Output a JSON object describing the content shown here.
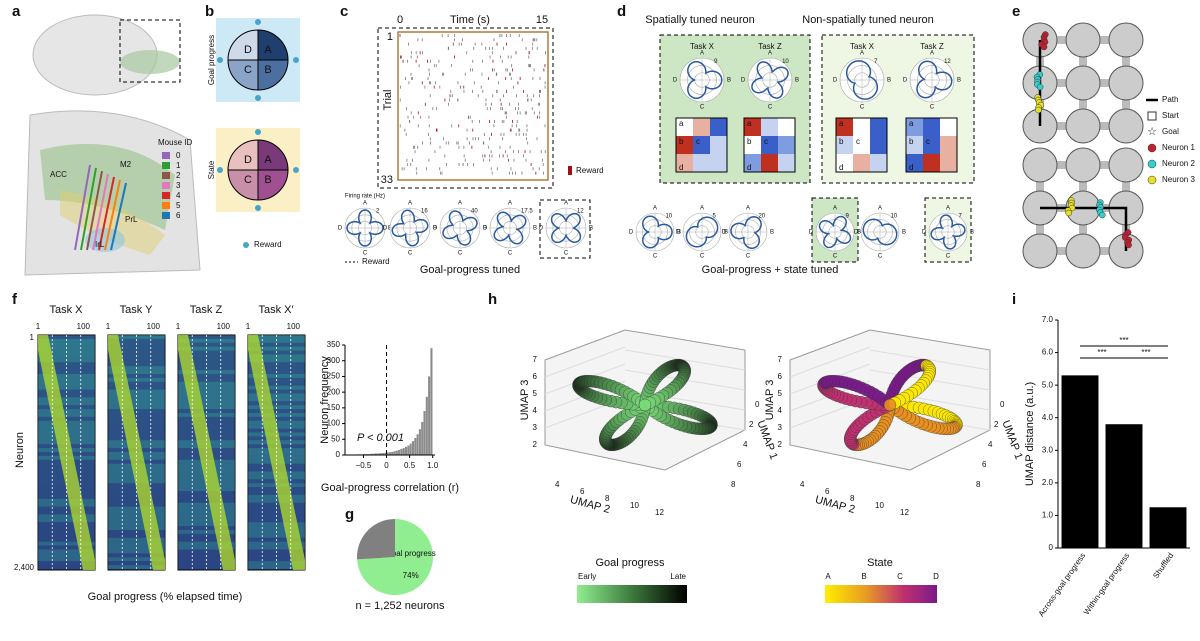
{
  "panels": {
    "a": {
      "label": "a",
      "legend_title": "Mouse ID",
      "mouse_ids": [
        "0",
        "1",
        "2",
        "3",
        "4",
        "5",
        "6"
      ],
      "mouse_colors": [
        "#9467bd",
        "#2ca02c",
        "#8c564b",
        "#e377c2",
        "#d62728",
        "#ff7f0e",
        "#1f77b4"
      ],
      "regions": [
        "ACC",
        "M2",
        "PrL",
        "IrL"
      ]
    },
    "b": {
      "label": "b",
      "axis_labels": [
        "Goal progress",
        "State"
      ],
      "letters": [
        "A",
        "B",
        "C",
        "D"
      ],
      "legend": "Reward"
    },
    "c": {
      "label": "c",
      "x_label": "Time (s)",
      "xticks": [
        "0",
        "15"
      ],
      "y_label": "Trial",
      "yticks": [
        "1",
        "33"
      ],
      "legend": "Reward",
      "rate_label": "Firing rate (Hz)",
      "polar_scales": [
        "2",
        "16",
        "40",
        "17.5",
        "12"
      ],
      "reward_legend": "Reward",
      "caption": "Goal-progress tuned"
    },
    "d": {
      "label": "d",
      "titles": [
        "Spatially tuned neuron",
        "Non-spatially tuned neuron"
      ],
      "tasks": [
        "Task X",
        "Task Z",
        "Task X",
        "Task Z"
      ],
      "scales": [
        "9",
        "10",
        "7",
        "12"
      ],
      "cell_letters": [
        "a",
        "b",
        "c",
        "d"
      ],
      "bottom_scales": [
        "10",
        "5",
        "20",
        "9",
        "10",
        "7"
      ],
      "caption": "Goal-progress + state tuned"
    },
    "e": {
      "label": "e",
      "legend": [
        "Path",
        "Start",
        "Goal",
        "Neuron 1",
        "Neuron 2",
        "Neuron 3"
      ]
    },
    "f": {
      "label": "f",
      "tasks": [
        "Task X",
        "Task Y",
        "Task Z",
        "Task X′"
      ],
      "xticks": [
        "1",
        "100"
      ],
      "y_label": "Neuron",
      "yticks": [
        "1",
        "2,400"
      ],
      "x_label": "Goal progress (% elapsed time)"
    },
    "g": {
      "label": "g"
    },
    "h": {
      "label": "h",
      "axis_labels": [
        "UMAP 1",
        "UMAP 2",
        "UMAP 3"
      ],
      "umap1_ticks": [
        "0",
        "2",
        "4",
        "6",
        "8"
      ],
      "umap2_ticks": [
        "4",
        "6",
        "8",
        "10",
        "12"
      ],
      "umap3_ticks": [
        "2",
        "3",
        "4",
        "5",
        "6",
        "7"
      ],
      "colorbar_titles": [
        "Goal progress",
        "State"
      ],
      "progress_ends": [
        "Early",
        "Late"
      ],
      "state_ticks": [
        "A",
        "B",
        "C",
        "D"
      ]
    },
    "i": {
      "label": "i",
      "significance": [
        "***",
        "***",
        "***"
      ]
    }
  },
  "chart_data": [
    {
      "type": "histogram",
      "y_label": "Neuron frequency",
      "x_label": "Goal-progress correlation (r)",
      "annotation": "P < 0.001",
      "bins": [
        -0.8,
        -0.75,
        -0.7,
        -0.65,
        -0.6,
        -0.55,
        -0.5,
        -0.45,
        -0.4,
        -0.35,
        -0.3,
        -0.25,
        -0.2,
        -0.15,
        -0.1,
        -0.05,
        0,
        0.05,
        0.1,
        0.15,
        0.2,
        0.25,
        0.3,
        0.35,
        0.4,
        0.45,
        0.5,
        0.55,
        0.6,
        0.65,
        0.7,
        0.75,
        0.8,
        0.85,
        0.9,
        0.95,
        1.0
      ],
      "counts": [
        1,
        1,
        1,
        2,
        2,
        2,
        3,
        3,
        3,
        4,
        4,
        5,
        5,
        6,
        6,
        7,
        8,
        9,
        10,
        12,
        14,
        16,
        19,
        22,
        26,
        30,
        36,
        44,
        54,
        66,
        82,
        105,
        140,
        185,
        250,
        340
      ],
      "color": "#8c8c8c",
      "xlim": [
        -0.9,
        1.05
      ],
      "xticks": [
        {
          "value": -0.5,
          "label": "−0.5"
        },
        0,
        0.5,
        {
          "value": 1,
          "label": "1.0"
        }
      ],
      "ylim": [
        0,
        350
      ],
      "yticks": [
        0,
        50,
        100,
        150,
        200,
        250,
        300,
        350
      ]
    },
    {
      "type": "pie",
      "categories": [
        "Goal progress",
        null
      ],
      "values": [
        74,
        26
      ],
      "value_labels": [
        "74%",
        null
      ],
      "colors": [
        "#90ee90",
        "#808080"
      ],
      "caption": "n = 1,252 neurons"
    },
    {
      "type": "bar",
      "y_label": "UMAP distance (a.u.)",
      "categories": [
        "Across-goal progress",
        "Within-goal progress",
        "Shuffled"
      ],
      "values": [
        5.3,
        3.8,
        1.25
      ],
      "color": "#000000",
      "ylim": [
        0,
        7
      ],
      "yticks": [
        0,
        {
          "value": 1,
          "label": "1.0"
        },
        {
          "value": 2,
          "label": "2.0"
        },
        {
          "value": 3,
          "label": "3.0"
        },
        {
          "value": 4,
          "label": "4.0"
        },
        {
          "value": 5,
          "label": "5.0"
        },
        {
          "value": 6,
          "label": "6.0"
        },
        {
          "value": 7,
          "label": "7.0"
        }
      ]
    }
  ]
}
